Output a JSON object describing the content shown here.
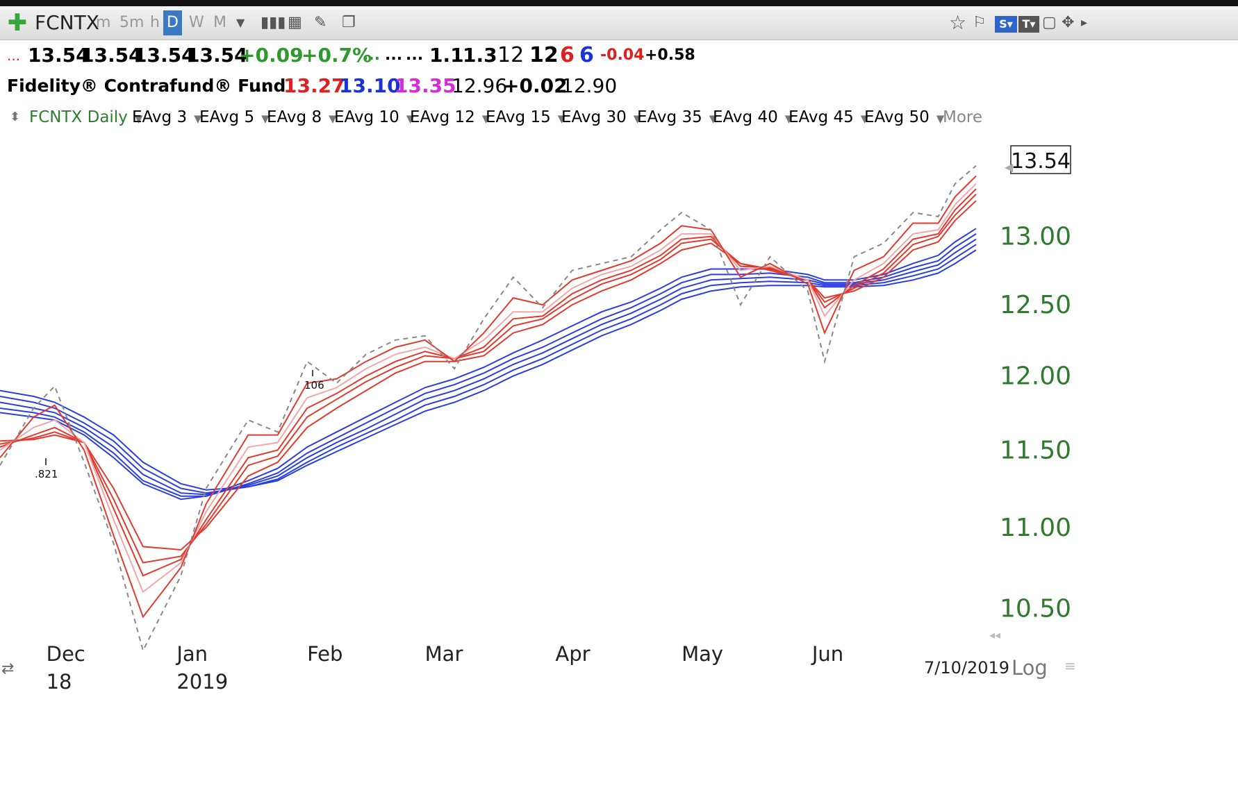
{
  "toolbar": {
    "symbol": "FCNTX",
    "timeframes": [
      "m",
      "5m",
      "h",
      "D",
      "W",
      "M"
    ],
    "active_timeframe": "D"
  },
  "quote": {
    "prefix": "...",
    "open": "13.54",
    "high": "13.54",
    "low": "13.54",
    "close": "13.54",
    "change": "+0.09",
    "change_pct": "+0.7%",
    "dots1": "...",
    "dots2": "...",
    "dots3": "...",
    "v1": "1.1",
    "v2": "1.3",
    "v3": "12",
    "v4": "12",
    "v5": "6",
    "v6": "6",
    "v7": "-0.04",
    "v8": "+0.58",
    "name": "Fidelity® Contrafund® Fund",
    "name_dots": "...",
    "r1": "13.27",
    "r2": "13.10",
    "r3": "13.35",
    "r4": "12.96",
    "r5": "+0.02",
    "r6": "12.90",
    "colors": {
      "up": "#2e9a2e",
      "down": "#e02020",
      "blue": "#1a33d6",
      "magenta": "#d62bd6"
    }
  },
  "legend": {
    "price_label": "FCNTX Daily",
    "items": [
      {
        "label": "EAvg 3",
        "color": "#e23a2e"
      },
      {
        "label": "EAvg 5",
        "color": "#e23a2e"
      },
      {
        "label": "EAvg 8",
        "color": "#f0a0a0"
      },
      {
        "label": "EAvg 10",
        "color": "#e23a2e"
      },
      {
        "label": "EAvg 12",
        "color": "#e23a2e"
      },
      {
        "label": "EAvg 15",
        "color": "#e23a2e"
      },
      {
        "label": "EAvg 30",
        "color": "#2a3fe0"
      },
      {
        "label": "EAvg 35",
        "color": "#2a3fe0"
      },
      {
        "label": "EAvg 40",
        "color": "#2a3fe0"
      },
      {
        "label": "EAvg 45",
        "color": "#2a3fe0"
      },
      {
        "label": "EAvg 50",
        "color": "#2a3fe0"
      }
    ],
    "more": "More"
  },
  "chart_data": {
    "type": "line",
    "title": "FCNTX Daily",
    "y_scale": "log",
    "y_ticks": [
      "10.50",
      "11.00",
      "11.50",
      "12.00",
      "12.50",
      "13.00"
    ],
    "last_price": "13.54",
    "x_month_labels": [
      "Dec",
      "Jan",
      "Feb",
      "Mar",
      "Apr",
      "May",
      "Jun"
    ],
    "x_year_labels": [
      "18",
      "2019"
    ],
    "date_label": "7/10/2019",
    "scale_button": "Log",
    "annotations": [
      ".821",
      "106"
    ],
    "x": [
      "2018-11-20",
      "2018-11-28",
      "2018-12-03",
      "2018-12-10",
      "2018-12-17",
      "2018-12-24",
      "2019-01-02",
      "2019-01-08",
      "2019-01-18",
      "2019-01-25",
      "2019-02-01",
      "2019-02-08",
      "2019-02-15",
      "2019-02-22",
      "2019-03-01",
      "2019-03-08",
      "2019-03-15",
      "2019-03-22",
      "2019-03-29",
      "2019-04-05",
      "2019-04-12",
      "2019-04-19",
      "2019-04-26",
      "2019-05-01",
      "2019-05-08",
      "2019-05-15",
      "2019-05-22",
      "2019-05-31",
      "2019-06-04",
      "2019-06-11",
      "2019-06-18",
      "2019-06-25",
      "2019-07-01",
      "2019-07-05",
      "2019-07-10"
    ],
    "series": [
      {
        "values": [
          11.4,
          11.78,
          11.93,
          11.42,
          10.9,
          10.25,
          10.7,
          11.25,
          11.7,
          11.62,
          12.1,
          11.95,
          12.15,
          12.25,
          12.28,
          12.05,
          12.4,
          12.7,
          12.48,
          12.75,
          12.8,
          12.85,
          13.05,
          13.18,
          13.05,
          12.5,
          12.85,
          12.6,
          12.1,
          12.85,
          12.95,
          13.18,
          13.15,
          13.4,
          13.54
        ]
      },
      {
        "values": [
          11.45,
          11.72,
          11.8,
          11.5,
          10.95,
          10.45,
          10.75,
          11.15,
          11.6,
          11.6,
          11.95,
          11.98,
          12.1,
          12.2,
          12.25,
          12.1,
          12.3,
          12.55,
          12.5,
          12.68,
          12.75,
          12.82,
          12.95,
          13.08,
          13.05,
          12.7,
          12.8,
          12.65,
          12.3,
          12.75,
          12.85,
          13.1,
          13.1,
          13.3,
          13.46
        ]
      },
      {
        "values": [
          11.5,
          11.65,
          11.7,
          11.55,
          11.05,
          10.6,
          10.78,
          11.1,
          11.52,
          11.55,
          11.85,
          11.92,
          12.05,
          12.15,
          12.2,
          12.12,
          12.25,
          12.45,
          12.45,
          12.62,
          12.72,
          12.78,
          12.9,
          13.02,
          13.02,
          12.75,
          12.78,
          12.68,
          12.42,
          12.68,
          12.8,
          13.02,
          13.05,
          13.24,
          13.4
        ]
      },
      {
        "values": [
          11.52,
          11.6,
          11.65,
          11.55,
          11.12,
          10.7,
          10.8,
          11.05,
          11.45,
          11.5,
          11.78,
          11.88,
          12.0,
          12.1,
          12.17,
          12.12,
          12.2,
          12.4,
          12.42,
          12.58,
          12.68,
          12.75,
          12.86,
          12.98,
          13.0,
          12.78,
          12.77,
          12.68,
          12.48,
          12.64,
          12.76,
          12.98,
          13.02,
          13.2,
          13.36
        ]
      },
      {
        "values": [
          11.54,
          11.58,
          11.62,
          11.55,
          11.18,
          10.78,
          10.82,
          11.02,
          11.4,
          11.46,
          11.72,
          11.84,
          11.96,
          12.06,
          12.14,
          12.12,
          12.17,
          12.35,
          12.4,
          12.54,
          12.65,
          12.72,
          12.83,
          12.95,
          12.98,
          12.8,
          12.76,
          12.68,
          12.52,
          12.62,
          12.73,
          12.94,
          13.0,
          13.16,
          13.32
        ]
      },
      {
        "values": [
          11.56,
          11.57,
          11.6,
          11.55,
          11.25,
          10.88,
          10.86,
          11.0,
          11.33,
          11.42,
          11.65,
          11.78,
          11.9,
          12.02,
          12.1,
          12.1,
          12.14,
          12.3,
          12.36,
          12.5,
          12.6,
          12.68,
          12.8,
          12.9,
          12.95,
          12.8,
          12.75,
          12.68,
          12.55,
          12.6,
          12.7,
          12.9,
          12.96,
          13.12,
          13.27
        ]
      },
      {
        "values": [
          11.75,
          11.72,
          11.7,
          11.6,
          11.45,
          11.28,
          11.18,
          11.2,
          11.3,
          11.38,
          11.52,
          11.62,
          11.72,
          11.82,
          11.92,
          11.98,
          12.06,
          12.16,
          12.25,
          12.35,
          12.45,
          12.52,
          12.62,
          12.7,
          12.76,
          12.76,
          12.76,
          12.72,
          12.68,
          12.68,
          12.72,
          12.8,
          12.86,
          12.96,
          13.06
        ]
      },
      {
        "values": [
          11.78,
          11.75,
          11.72,
          11.62,
          11.48,
          11.3,
          11.2,
          11.2,
          11.28,
          11.35,
          11.48,
          11.58,
          11.68,
          11.78,
          11.88,
          11.94,
          12.02,
          12.12,
          12.2,
          12.3,
          12.4,
          12.48,
          12.58,
          12.66,
          12.72,
          12.72,
          12.73,
          12.7,
          12.66,
          12.66,
          12.7,
          12.77,
          12.82,
          12.92,
          13.02
        ]
      },
      {
        "values": [
          11.82,
          11.78,
          11.75,
          11.65,
          11.52,
          11.34,
          11.22,
          11.21,
          11.27,
          11.33,
          11.45,
          11.55,
          11.64,
          11.74,
          11.84,
          11.9,
          11.98,
          12.08,
          12.16,
          12.26,
          12.36,
          12.44,
          12.54,
          12.62,
          12.68,
          12.69,
          12.7,
          12.68,
          12.65,
          12.65,
          12.68,
          12.74,
          12.79,
          12.88,
          12.98
        ]
      },
      {
        "values": [
          11.86,
          11.82,
          11.78,
          11.68,
          11.56,
          11.38,
          11.25,
          11.22,
          11.26,
          11.31,
          11.42,
          11.52,
          11.61,
          11.7,
          11.8,
          11.86,
          11.94,
          12.04,
          12.12,
          12.22,
          12.32,
          12.4,
          12.5,
          12.58,
          12.64,
          12.66,
          12.67,
          12.66,
          12.64,
          12.64,
          12.66,
          12.71,
          12.76,
          12.84,
          12.94
        ]
      },
      {
        "values": [
          11.9,
          11.86,
          11.82,
          11.72,
          11.6,
          11.42,
          11.28,
          11.24,
          11.26,
          11.3,
          11.4,
          11.49,
          11.58,
          11.67,
          11.76,
          11.82,
          11.9,
          12.0,
          12.08,
          12.18,
          12.28,
          12.36,
          12.46,
          12.54,
          12.6,
          12.63,
          12.64,
          12.64,
          12.63,
          12.63,
          12.64,
          12.68,
          12.73,
          12.8,
          12.9
        ]
      }
    ],
    "ylim": [
      10.32,
      13.75
    ]
  }
}
